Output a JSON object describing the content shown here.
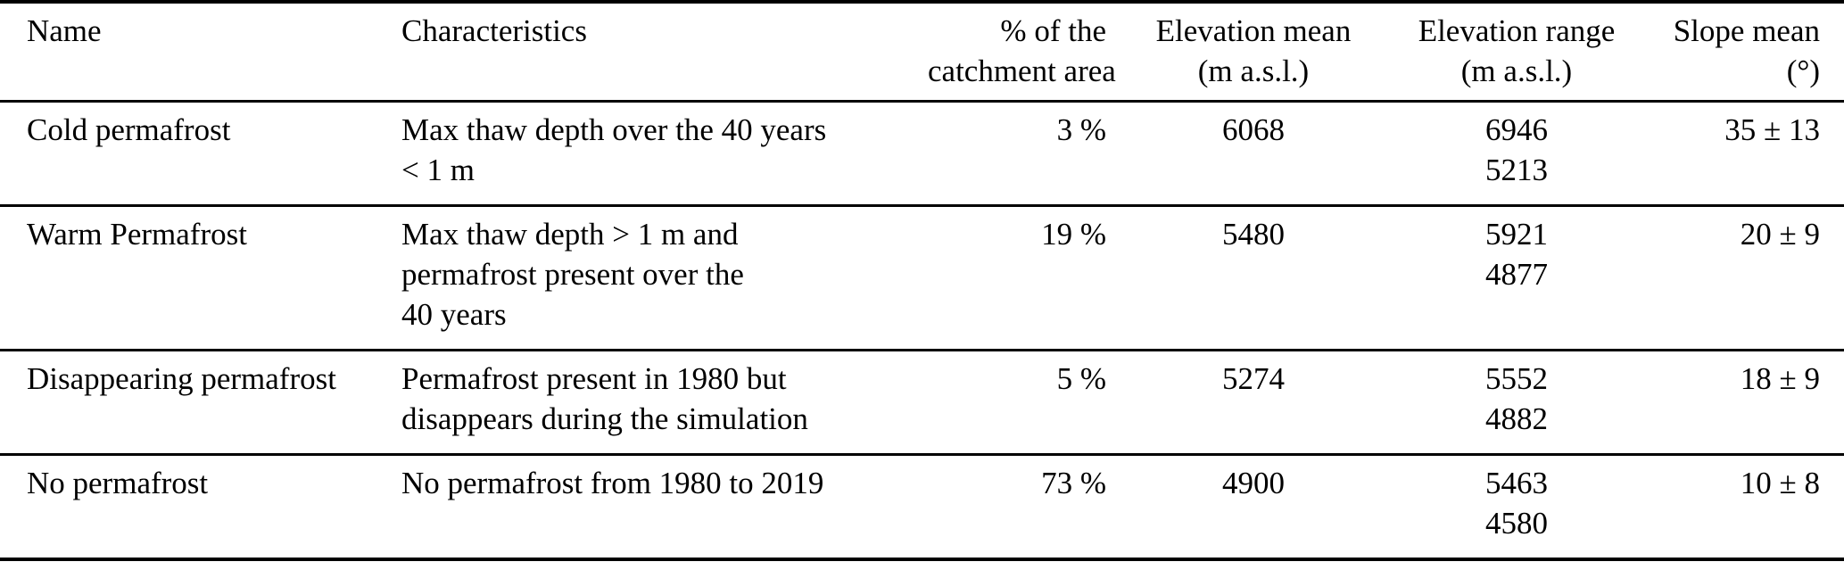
{
  "table": {
    "headers": {
      "name": "Name",
      "characteristics": "Characteristics",
      "pct_line1": "% of the",
      "pct_line2": "catchment area",
      "elev_mean_line1": "Elevation mean",
      "elev_mean_line2": "(m a.s.l.)",
      "elev_range_line1": "Elevation range",
      "elev_range_line2": "(m a.s.l.)",
      "slope_line1": "Slope mean",
      "slope_line2": "(°)"
    },
    "rows": [
      {
        "name": "Cold permafrost",
        "characteristics_line1": "Max thaw depth over the 40 years",
        "characteristics_line2": "< 1 m",
        "pct": "3 %",
        "elev_mean": "6068",
        "elev_range_max": "6946",
        "elev_range_min": "5213",
        "slope": "35 ± 13"
      },
      {
        "name": "Warm Permafrost",
        "characteristics_line1": "Max thaw depth > 1 m and",
        "characteristics_line2": "permafrost present over the",
        "characteristics_line3": "40 years",
        "pct": "19 %",
        "elev_mean": "5480",
        "elev_range_max": "5921",
        "elev_range_min": "4877",
        "slope": "20 ± 9"
      },
      {
        "name": "Disappearing permafrost",
        "characteristics_line1": "Permafrost present in 1980 but",
        "characteristics_line2": "disappears during the simulation",
        "pct": "5 %",
        "elev_mean": "5274",
        "elev_range_max": "5552",
        "elev_range_min": "4882",
        "slope": "18 ± 9"
      },
      {
        "name": "No permafrost",
        "characteristics_line1": "No permafrost from 1980 to 2019",
        "pct": "73 %",
        "elev_mean": "4900",
        "elev_range_max": "5463",
        "elev_range_min": "4580",
        "slope": "10 ± 8"
      }
    ],
    "colors": {
      "text": "#000000",
      "rule": "#000000",
      "background": "#ffffff"
    }
  }
}
